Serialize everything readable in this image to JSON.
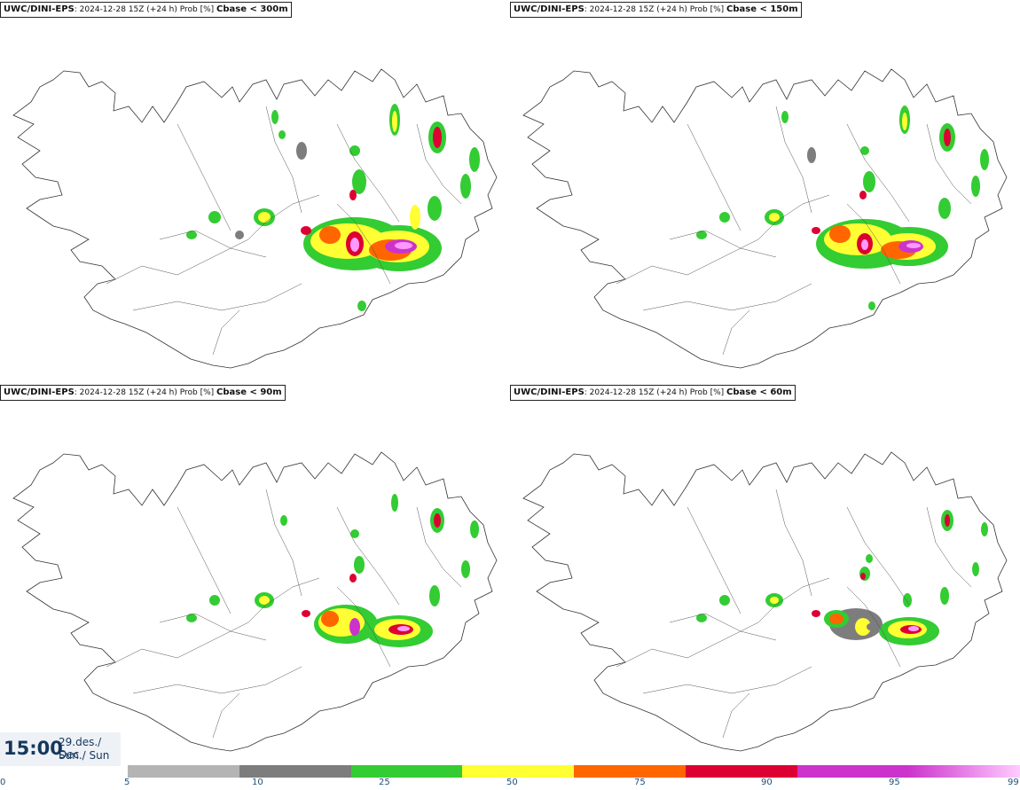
{
  "panels": [
    {
      "model": "UWC/DINI-EPS",
      "info": ": 2024-12-28 15Z (+24 h) Prob [%] ",
      "threshold": "Cbase < 300m"
    },
    {
      "model": "UWC/DINI-EPS",
      "info": ": 2024-12-28 15Z (+24 h) Prob [%] ",
      "threshold": "Cbase < 150m"
    },
    {
      "model": "UWC/DINI-EPS",
      "info": ": 2024-12-28 15Z (+24 h) Prob [%] ",
      "threshold": "Cbase < 90m"
    },
    {
      "model": "UWC/DINI-EPS",
      "info": ": 2024-12-28 15Z (+24 h) Prob [%] ",
      "threshold": "Cbase < 60m"
    }
  ],
  "valid": {
    "time": "15:00",
    "date": "29.des./ Dec",
    "day": "Sun./ Sun"
  },
  "legend": {
    "ticks": [
      "0",
      "5",
      "10",
      "25",
      "50",
      "75",
      "90",
      "95",
      "99"
    ],
    "colors": [
      "#b4b4b4",
      "#7d7d7d",
      "#33cc33",
      "#ffff33",
      "#ff6600",
      "#dd0033",
      "#cc33cc",
      "#ff99ff"
    ]
  }
}
